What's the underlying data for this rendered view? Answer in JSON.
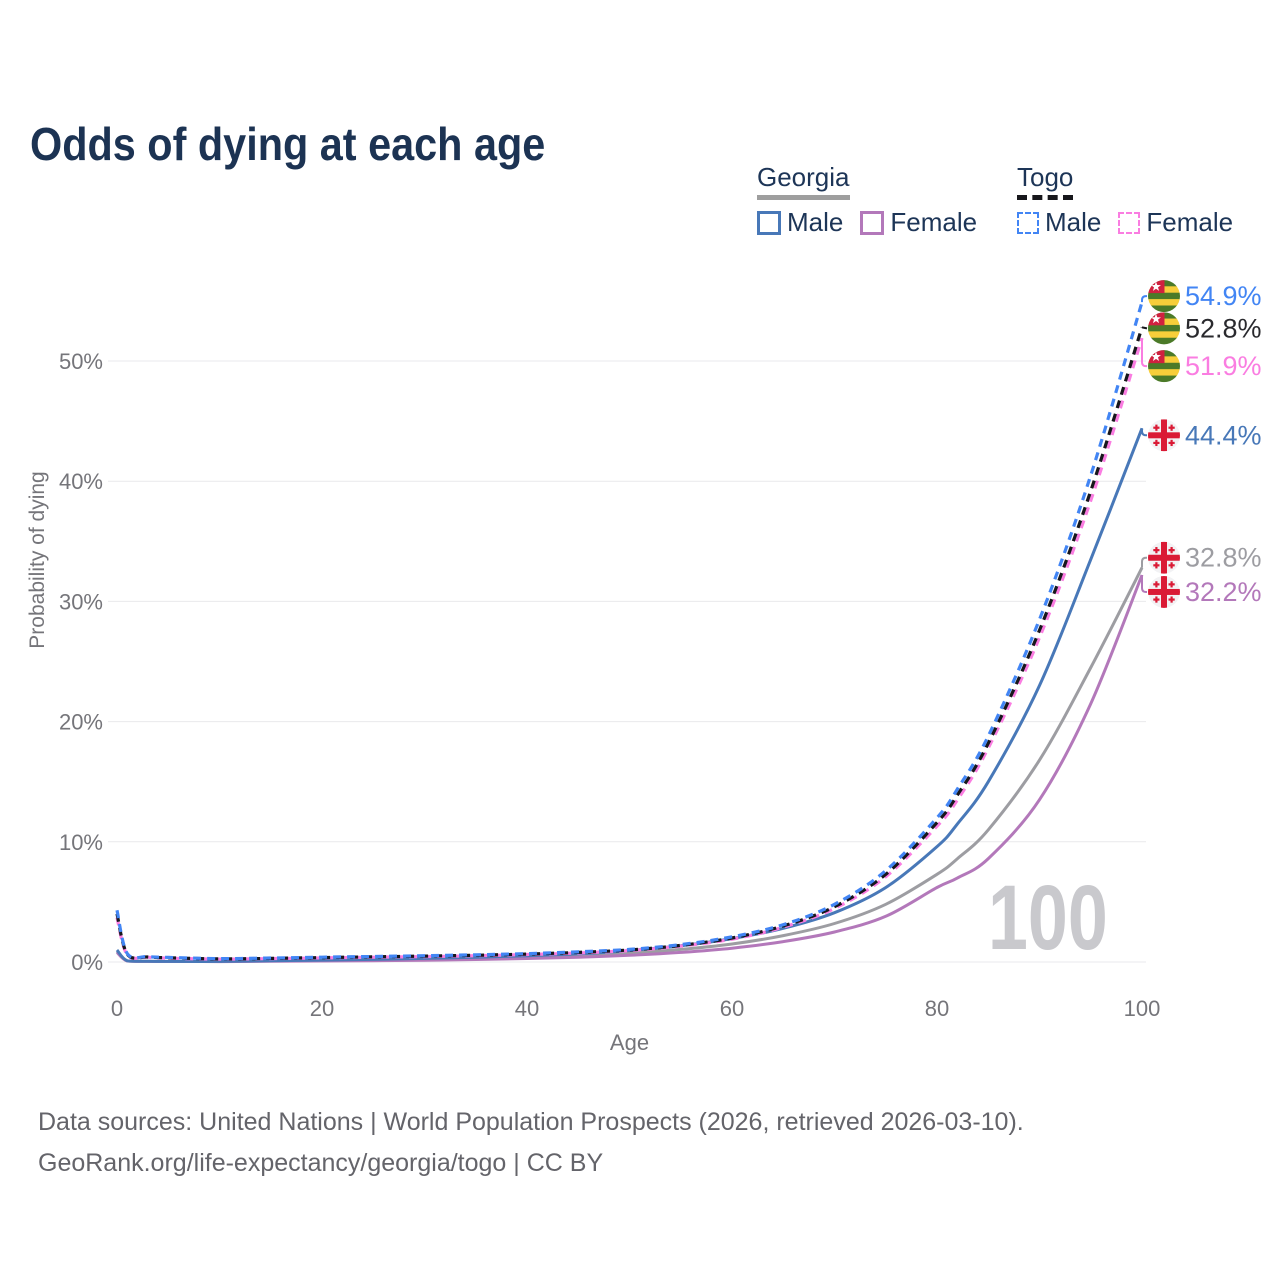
{
  "title": "Odds of dying at each age",
  "legend": {
    "georgia": {
      "label": "Georgia",
      "male": "Male",
      "female": "Female",
      "underline_color": "#9e9e9e",
      "male_color": "#4878b8",
      "female_color": "#b378ba"
    },
    "togo": {
      "label": "Togo",
      "male": "Male",
      "female": "Female",
      "underline_color": "#17171c",
      "male_color": "#4285f4",
      "female_color": "#fa7de1"
    }
  },
  "footer": {
    "line1": "Data sources: United Nations | World Population Prospects (2026, retrieved 2026-03-10).",
    "line2": "GeoRank.org/life-expectancy/georgia/togo | CC BY"
  },
  "chart_data": {
    "type": "line",
    "title": "Odds of dying at each age",
    "xlabel": "Age",
    "ylabel": "Probability of dying",
    "x_ticks": [
      0,
      20,
      40,
      60,
      80,
      100
    ],
    "y_ticks": [
      {
        "value": 0,
        "label": "0%"
      },
      {
        "value": 10,
        "label": "10%"
      },
      {
        "value": 20,
        "label": "20%"
      },
      {
        "value": 30,
        "label": "30%"
      },
      {
        "value": 40,
        "label": "40%"
      },
      {
        "value": 50,
        "label": "50%"
      }
    ],
    "xlim": [
      0,
      100
    ],
    "ylim": [
      0,
      56
    ],
    "grid": "horizontal-only",
    "legend_position": "top-right",
    "watermark": "100",
    "x": [
      0,
      1,
      3,
      5,
      10,
      15,
      20,
      25,
      30,
      35,
      40,
      45,
      50,
      55,
      60,
      65,
      70,
      75,
      80,
      82,
      85,
      90,
      95,
      100
    ],
    "series": [
      {
        "name": "Georgia — Both sexes",
        "country": "Georgia",
        "sex": "All",
        "flag": "georgia",
        "color": "#9d9da2",
        "label_color": "#9d9da2",
        "dashed": false,
        "end_label": "32.8%",
        "label_offset": -10,
        "values": [
          0.9,
          0.09,
          0.05,
          0.045,
          0.04,
          0.08,
          0.12,
          0.16,
          0.22,
          0.3,
          0.4,
          0.54,
          0.75,
          1.05,
          1.5,
          2.2,
          3.2,
          4.8,
          7.3,
          8.6,
          11.0,
          16.8,
          24.5,
          32.8
        ]
      },
      {
        "name": "Georgia — Female",
        "country": "Georgia",
        "sex": "Female",
        "flag": "georgia",
        "color": "#b378ba",
        "label_color": "#b378ba",
        "dashed": false,
        "end_label": "32.2%",
        "label_offset": 17,
        "values": [
          0.8,
          0.08,
          0.05,
          0.04,
          0.035,
          0.06,
          0.08,
          0.11,
          0.15,
          0.21,
          0.29,
          0.4,
          0.56,
          0.8,
          1.15,
          1.7,
          2.5,
          3.8,
          6.2,
          7.0,
          8.6,
          13.5,
          21.5,
          32.2
        ]
      },
      {
        "name": "Georgia — Male",
        "country": "Georgia",
        "sex": "Male",
        "flag": "georgia",
        "color": "#4878b8",
        "label_color": "#4878b8",
        "dashed": false,
        "end_label": "44.4%",
        "label_offset": 7,
        "values": [
          1.0,
          0.1,
          0.06,
          0.05,
          0.05,
          0.1,
          0.16,
          0.22,
          0.3,
          0.4,
          0.52,
          0.68,
          0.95,
          1.35,
          1.95,
          2.8,
          4.1,
          6.2,
          9.6,
          11.5,
          15.0,
          23.0,
          33.5,
          44.4
        ]
      },
      {
        "name": "Togo — Female",
        "country": "Togo",
        "sex": "Female",
        "flag": "togo",
        "color": "#fa7de1",
        "label_color": "#fa7de1",
        "dashed": true,
        "end_label": "51.9%",
        "label_offset": 28,
        "values": [
          3.7,
          0.6,
          0.4,
          0.32,
          0.24,
          0.28,
          0.34,
          0.4,
          0.45,
          0.52,
          0.62,
          0.75,
          0.95,
          1.32,
          1.9,
          2.9,
          4.45,
          7.1,
          11.3,
          13.5,
          17.8,
          27.0,
          38.4,
          51.9
        ]
      },
      {
        "name": "Togo — Both sexes",
        "country": "Togo",
        "sex": "All",
        "flag": "togo",
        "color": "#17171c",
        "label_color": "#2a2a2e",
        "dashed": true,
        "end_label": "52.8%",
        "label_offset": 1,
        "values": [
          4.0,
          0.65,
          0.42,
          0.35,
          0.26,
          0.3,
          0.37,
          0.43,
          0.49,
          0.56,
          0.66,
          0.8,
          1.0,
          1.38,
          2.0,
          3.0,
          4.6,
          7.3,
          11.6,
          13.9,
          18.2,
          27.6,
          39.2,
          52.8
        ]
      },
      {
        "name": "Togo — Male",
        "country": "Togo",
        "sex": "Male",
        "flag": "togo",
        "color": "#4285f4",
        "label_color": "#4285f4",
        "dashed": true,
        "end_label": "54.9%",
        "label_offset": -6,
        "values": [
          4.3,
          0.7,
          0.45,
          0.38,
          0.28,
          0.33,
          0.4,
          0.46,
          0.52,
          0.6,
          0.7,
          0.85,
          1.05,
          1.45,
          2.1,
          3.1,
          4.8,
          7.6,
          12.0,
          14.4,
          18.8,
          28.5,
          40.5,
          54.9
        ]
      }
    ]
  }
}
